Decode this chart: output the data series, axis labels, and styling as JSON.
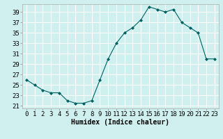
{
  "x": [
    0,
    1,
    2,
    3,
    4,
    5,
    6,
    7,
    8,
    9,
    10,
    11,
    12,
    13,
    14,
    15,
    16,
    17,
    18,
    19,
    20,
    21,
    22,
    23
  ],
  "y": [
    26,
    25,
    24,
    23.5,
    23.5,
    22,
    21.5,
    21.5,
    22,
    26,
    30,
    33,
    35,
    36,
    37.5,
    40,
    39.5,
    39,
    39.5,
    37,
    36,
    35,
    30,
    30
  ],
  "line_color": "#006060",
  "marker": "D",
  "marker_size": 2.0,
  "background_color": "#d0f0f0",
  "grid_color": "#ffffff",
  "xlabel": "Humidex (Indice chaleur)",
  "xlim": [
    -0.5,
    23.5
  ],
  "ylim": [
    20.5,
    40.5
  ],
  "yticks": [
    21,
    23,
    25,
    27,
    29,
    31,
    33,
    35,
    37,
    39
  ],
  "xticks": [
    0,
    1,
    2,
    3,
    4,
    5,
    6,
    7,
    8,
    9,
    10,
    11,
    12,
    13,
    14,
    15,
    16,
    17,
    18,
    19,
    20,
    21,
    22,
    23
  ],
  "xlabel_fontsize": 7.0,
  "tick_fontsize": 6.5
}
